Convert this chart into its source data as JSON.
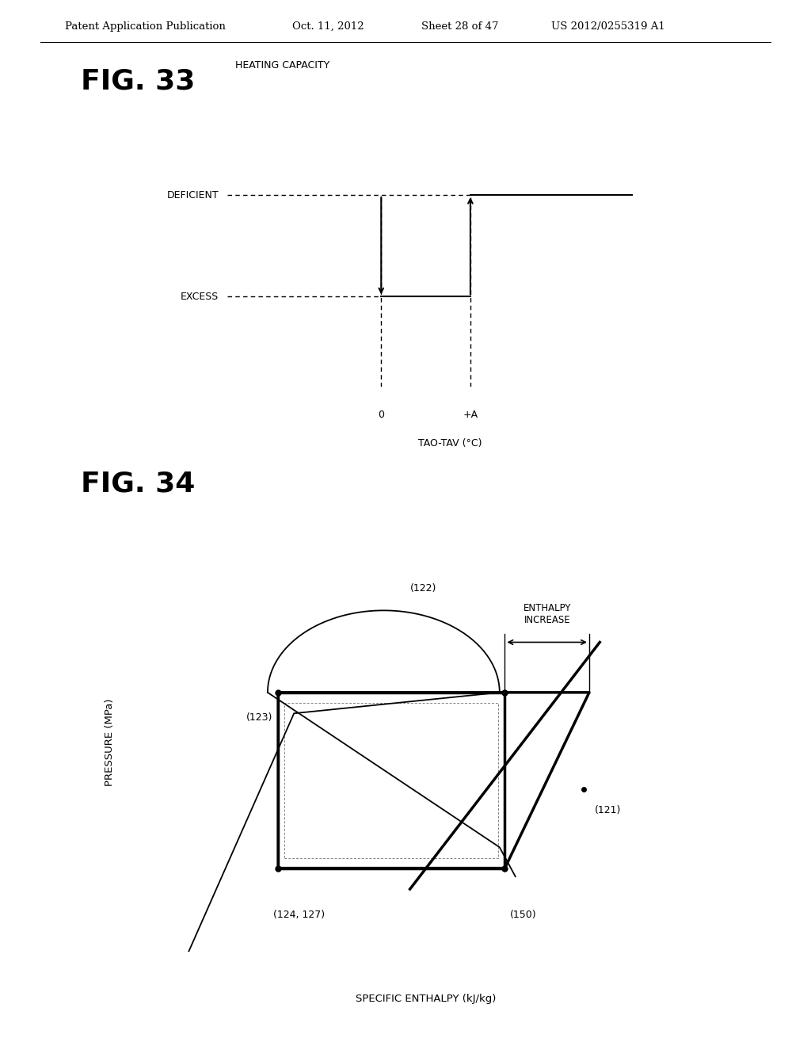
{
  "background_color": "#ffffff",
  "header_text": "Patent Application Publication",
  "header_date": "Oct. 11, 2012",
  "header_sheet": "Sheet 28 of 47",
  "header_patent": "US 2012/0255319 A1",
  "fig33_title": "FIG. 33",
  "fig33_xlabel": "TAO-TAV (°C)",
  "fig33_ylabel": "HEATING CAPACITY",
  "fig33_label_deficient": "DEFICIENT",
  "fig33_label_excess": "EXCESS",
  "fig33_tick0": "0",
  "fig33_tickA": "+A",
  "fig34_title": "FIG. 34",
  "fig34_xlabel": "SPECIFIC ENTHALPY (kJ/kg)",
  "fig34_ylabel": "PRESSURE (MPa)",
  "fig34_label_122": "(122)",
  "fig34_label_121": "(121)",
  "fig34_label_123": "(123)",
  "fig34_label_124_127": "(124, 127)",
  "fig34_label_150": "(150)",
  "fig34_enthalpy_increase": "ENTHALPY\nINCREASE"
}
